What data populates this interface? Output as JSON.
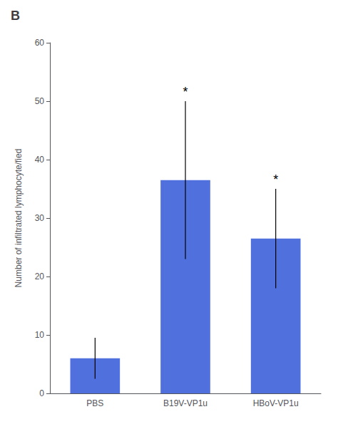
{
  "chart_data": {
    "type": "bar",
    "title": "B",
    "categories": [
      "PBS",
      "B19V-VP1u",
      "HBoV-VP1u"
    ],
    "values": [
      6.0,
      36.5,
      26.5
    ],
    "errors": [
      3.5,
      13.5,
      8.5
    ],
    "ylabel": "Number of infiltrated lymphocyte/fied",
    "ylim": [
      0,
      60
    ],
    "yticks": [
      0,
      10,
      20,
      30,
      40,
      50,
      60
    ],
    "annotations": [
      {
        "category": "B19V-VP1u",
        "text": "*"
      },
      {
        "category": "HBoV-VP1u",
        "text": "*"
      }
    ],
    "grid": false
  }
}
